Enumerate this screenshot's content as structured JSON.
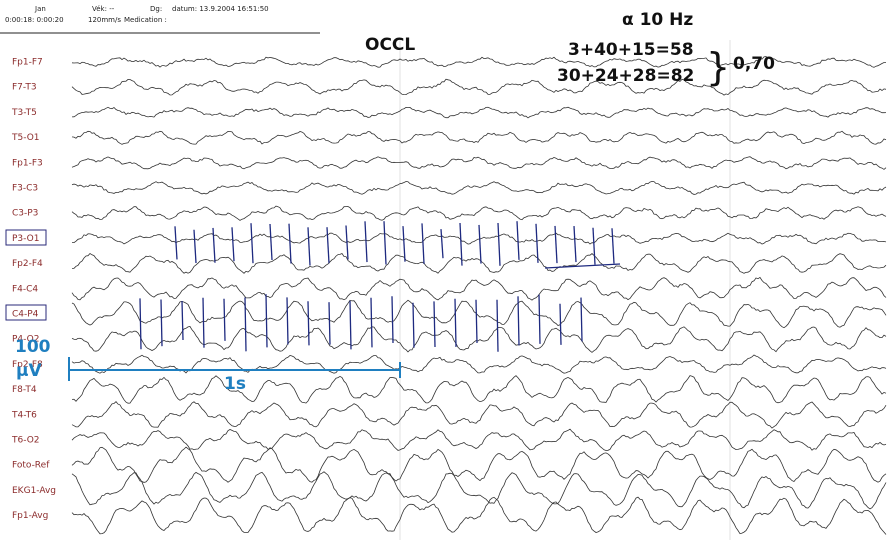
{
  "header": {
    "patient": "Jan",
    "age": "Vék: --",
    "diagnosis": "Dg:",
    "date": "datum: 13.9.2004  16:51:50",
    "time": "0:00:18: 0:00:20",
    "speed": "120mm/s",
    "medication": "Medication :"
  },
  "channels": [
    "Fp1-F7",
    "F7-T3",
    "T3-T5",
    "T5-O1",
    "Fp1-F3",
    "F3-C3",
    "C3-P3",
    "P3-O1",
    "Fp2-F4",
    "F4-C4",
    "C4-P4",
    "P4-O2",
    "Fp2-F8",
    "F8-T4",
    "T4-T6",
    "T6-O2",
    "Foto-Ref",
    "EKG1-Avg",
    "Fp1-Avg"
  ],
  "annotations": {
    "condition": "OCCL",
    "alpha": "α 10 Hz",
    "sum1": "3+40+15=58",
    "sum2": "30+24+28=82",
    "brace": "}",
    "ratio": "0,70",
    "amplitude_value": "100",
    "amplitude_unit": "µV",
    "time_scale": "1s"
  }
}
